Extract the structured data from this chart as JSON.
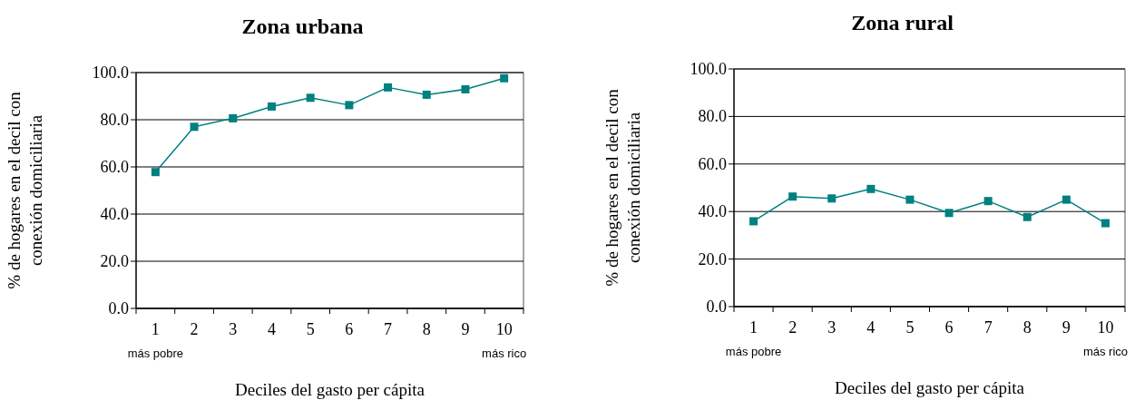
{
  "chart_data": [
    {
      "type": "line",
      "title": "Zona urbana",
      "xlabel": "Deciles del gasto per cápita",
      "ylabel": "% de hogares en el decil con\nconexión domiciliaria",
      "categories": [
        "1",
        "2",
        "3",
        "4",
        "5",
        "6",
        "7",
        "8",
        "9",
        "10"
      ],
      "series": [
        {
          "color": "#008080",
          "values": [
            57.8,
            77.0,
            80.6,
            85.6,
            89.3,
            86.2,
            93.7,
            90.6,
            92.9,
            97.6
          ]
        }
      ],
      "ylim": [
        0,
        100
      ],
      "yticks": [
        {
          "value": 0,
          "label": "0.0"
        },
        {
          "value": 20,
          "label": "20.0"
        },
        {
          "value": 40,
          "label": "40.0"
        },
        {
          "value": 60,
          "label": "60.0"
        },
        {
          "value": 80,
          "label": "80.0"
        },
        {
          "value": 100,
          "label": "100.0"
        }
      ],
      "grid": "y",
      "marker": "square",
      "annotations": [
        "más pobre",
        "más rico"
      ]
    },
    {
      "type": "line",
      "title": "Zona rural",
      "xlabel": "Deciles del gasto per cápita",
      "ylabel": "% de hogares en el decil con\nconexión domiciliaria",
      "categories": [
        "1",
        "2",
        "3",
        "4",
        "5",
        "6",
        "7",
        "8",
        "9",
        "10"
      ],
      "series": [
        {
          "color": "#008080",
          "values": [
            35.9,
            46.3,
            45.5,
            49.5,
            45.0,
            39.4,
            44.4,
            37.7,
            45.0,
            35.1
          ]
        }
      ],
      "ylim": [
        0,
        100
      ],
      "yticks": [
        {
          "value": 0,
          "label": "0.0"
        },
        {
          "value": 20,
          "label": "20.0"
        },
        {
          "value": 40,
          "label": "40.0"
        },
        {
          "value": 60,
          "label": "60.0"
        },
        {
          "value": 80,
          "label": "80.0"
        },
        {
          "value": 100,
          "label": "100.0"
        }
      ],
      "grid": "y",
      "marker": "square",
      "annotations": [
        "más pobre",
        "más rico"
      ]
    }
  ]
}
